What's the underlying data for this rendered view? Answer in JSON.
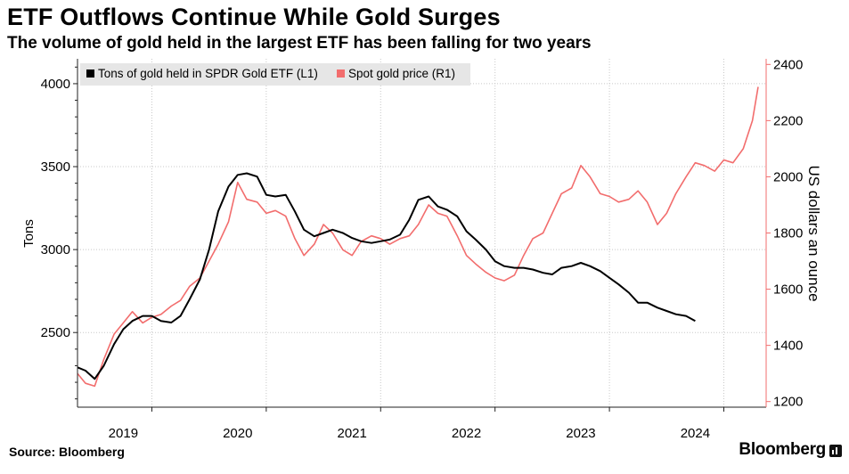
{
  "chart_data": {
    "type": "line",
    "title": "ETF Outflows Continue While Gold Surges",
    "subtitle": "The volume of gold held in the largest ETF has been falling for two years",
    "source": "Source: Bloomberg",
    "brand": "Bloomberg",
    "ylabel_left": "Tons",
    "ylabel_right": "US dollars an ounce",
    "ylim_left": [
      2050,
      4150
    ],
    "ylim_right": [
      1180,
      2420
    ],
    "xlim": [
      2018.35,
      2024.37
    ],
    "xticks": [
      {
        "label": "2019",
        "pos": 2018.75
      },
      {
        "label": "2020",
        "pos": 2019.75
      },
      {
        "label": "2021",
        "pos": 2020.75
      },
      {
        "label": "2022",
        "pos": 2021.75
      },
      {
        "label": "2023",
        "pos": 2022.75
      },
      {
        "label": "2024",
        "pos": 2023.75
      }
    ],
    "year_gridlines": [
      2019.0,
      2020.0,
      2021.0,
      2022.0,
      2023.0,
      2024.0
    ],
    "yticks_left": [
      2500,
      3000,
      3500,
      4000
    ],
    "yticks_right": [
      1200,
      1400,
      1600,
      1800,
      2000,
      2200,
      2400
    ],
    "legend": [
      {
        "label": "Tons of gold held in SPDR Gold ETF  (L1)",
        "color": "#000000"
      },
      {
        "label": "Spot gold price (R1)",
        "color": "#f26d6d"
      }
    ],
    "series": [
      {
        "name": "Tons of gold held in SPDR Gold ETF (L1)",
        "color": "#000000",
        "axis": "left",
        "x": [
          2018.35,
          2018.42,
          2018.5,
          2018.58,
          2018.67,
          2018.75,
          2018.83,
          2018.92,
          2019.0,
          2019.08,
          2019.17,
          2019.25,
          2019.33,
          2019.42,
          2019.5,
          2019.58,
          2019.67,
          2019.75,
          2019.83,
          2019.92,
          2020.0,
          2020.08,
          2020.17,
          2020.25,
          2020.33,
          2020.42,
          2020.5,
          2020.58,
          2020.67,
          2020.75,
          2020.83,
          2020.92,
          2021.0,
          2021.08,
          2021.17,
          2021.25,
          2021.33,
          2021.42,
          2021.5,
          2021.58,
          2021.67,
          2021.75,
          2021.83,
          2021.92,
          2022.0,
          2022.08,
          2022.17,
          2022.25,
          2022.33,
          2022.42,
          2022.5,
          2022.58,
          2022.67,
          2022.75,
          2022.83,
          2022.92,
          2023.0,
          2023.08,
          2023.17,
          2023.25,
          2023.33,
          2023.42,
          2023.5,
          2023.58,
          2023.67,
          2023.75
        ],
        "values": [
          2290,
          2270,
          2220,
          2300,
          2430,
          2520,
          2570,
          2600,
          2600,
          2570,
          2560,
          2600,
          2700,
          2820,
          3000,
          3230,
          3380,
          3450,
          3460,
          3440,
          3330,
          3320,
          3330,
          3230,
          3120,
          3080,
          3100,
          3120,
          3100,
          3070,
          3050,
          3040,
          3050,
          3060,
          3090,
          3180,
          3300,
          3320,
          3260,
          3240,
          3200,
          3110,
          3060,
          3000,
          2930,
          2900,
          2890,
          2890,
          2880,
          2860,
          2850,
          2890,
          2900,
          2920,
          2900,
          2870,
          2830,
          2790,
          2740,
          2680,
          2680,
          2650,
          2630,
          2610,
          2600,
          2570
        ]
      },
      {
        "name": "Spot gold price (R1)",
        "color": "#f26d6d",
        "axis": "right",
        "x": [
          2018.35,
          2018.42,
          2018.5,
          2018.58,
          2018.67,
          2018.75,
          2018.83,
          2018.92,
          2019.0,
          2019.08,
          2019.17,
          2019.25,
          2019.33,
          2019.42,
          2019.5,
          2019.58,
          2019.67,
          2019.75,
          2019.83,
          2019.92,
          2020.0,
          2020.08,
          2020.17,
          2020.25,
          2020.33,
          2020.42,
          2020.5,
          2020.58,
          2020.67,
          2020.75,
          2020.83,
          2020.92,
          2021.0,
          2021.08,
          2021.17,
          2021.25,
          2021.33,
          2021.42,
          2021.5,
          2021.58,
          2021.67,
          2021.75,
          2021.83,
          2021.92,
          2022.0,
          2022.08,
          2022.17,
          2022.25,
          2022.33,
          2022.42,
          2022.5,
          2022.58,
          2022.67,
          2022.75,
          2022.83,
          2022.92,
          2023.0,
          2023.08,
          2023.17,
          2023.25,
          2023.33,
          2023.42,
          2023.5,
          2023.58,
          2023.67,
          2023.75,
          2023.83,
          2023.92,
          2024.0,
          2024.08,
          2024.17,
          2024.25,
          2024.3
        ],
        "values": [
          1300,
          1265,
          1255,
          1350,
          1440,
          1480,
          1520,
          1480,
          1500,
          1510,
          1540,
          1560,
          1610,
          1640,
          1700,
          1760,
          1840,
          1980,
          1920,
          1910,
          1870,
          1880,
          1860,
          1780,
          1720,
          1760,
          1830,
          1800,
          1740,
          1720,
          1770,
          1790,
          1780,
          1760,
          1780,
          1790,
          1830,
          1900,
          1870,
          1860,
          1790,
          1720,
          1690,
          1660,
          1640,
          1630,
          1650,
          1720,
          1780,
          1800,
          1870,
          1940,
          1960,
          2040,
          2000,
          1940,
          1930,
          1910,
          1920,
          1950,
          1910,
          1830,
          1870,
          1940,
          2000,
          2050,
          2040,
          2020,
          2060,
          2050,
          2100,
          2200,
          2320
        ]
      }
    ]
  }
}
